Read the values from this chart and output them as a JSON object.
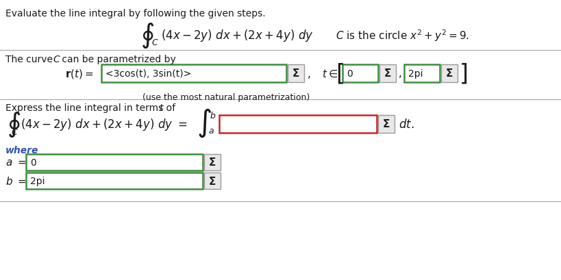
{
  "bg_color": "#ffffff",
  "title_text": "Evaluate the line integral by following the given steps.",
  "rt_value": "<3cos(t), 3sin(t)>",
  "t_lower": "0",
  "t_upper": "2pi",
  "natural_param": "(use the most natural parametrization)",
  "a_value": "0",
  "b_value": "2pi",
  "sigma_symbol": "Σ",
  "sigma_color": "#1a1a1a",
  "input_green": "#3d8c3d",
  "input_red": "#cc2222",
  "sigma_bg": "#e8e8e8",
  "sigma_border": "#999999",
  "line_color": "#aaaaaa",
  "text_color": "#1a1a1a",
  "math_color": "#1a1a1a",
  "italic_color": "#1a1a1a",
  "where_color": "#3355aa"
}
